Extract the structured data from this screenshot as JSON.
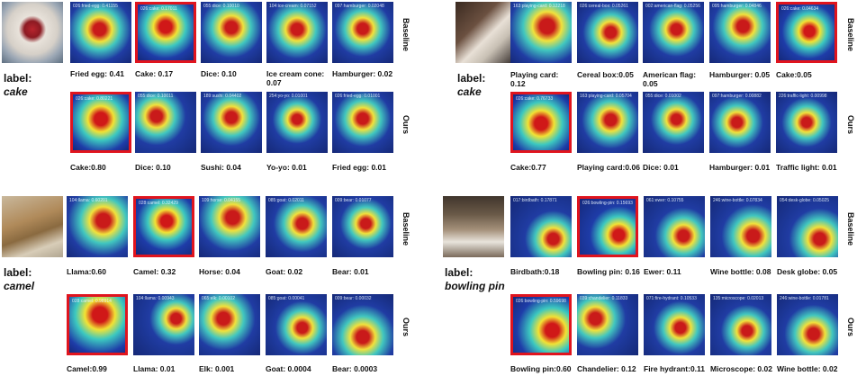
{
  "row_labels": {
    "baseline": "Baseline",
    "ours": "Ours"
  },
  "colors": {
    "selected_border": "#e0141e",
    "heat_hot": "#d01818",
    "heat_warm": "#f2e234",
    "heat_mid": "#3cc8c0",
    "heat_cold": "#1e3ca8"
  },
  "panels": [
    {
      "label_word": "label:",
      "label_class": "cake",
      "baseline": [
        {
          "caption": "Fried egg: 0.41",
          "hm": "026:fried-egg: 0.41155"
        },
        {
          "caption": "Cake: 0.17",
          "hm": "026:cake: 0.17011",
          "selected": true
        },
        {
          "caption": "Dice: 0.10",
          "hm": "055:dice: 0.10010"
        },
        {
          "caption": "Ice cream cone: 0.07",
          "hm": "104:ice-cream: 0.07152"
        },
        {
          "caption": "Hamburger: 0.02",
          "hm": "097:hamburger: 0.02048"
        }
      ],
      "ours": [
        {
          "caption": "Cake:0.80",
          "hm": "026:cake: 0.80221",
          "selected": true
        },
        {
          "caption": "Dice: 0.10",
          "hm": "055:dice: 0.10011"
        },
        {
          "caption": "Sushi: 0.04",
          "hm": "189:sushi: 0.04402"
        },
        {
          "caption": "Yo-yo: 0.01",
          "hm": "254:yo-yo: 0.01001"
        },
        {
          "caption": "Fried egg: 0.01",
          "hm": "026:fried-egg: 0.01001"
        }
      ]
    },
    {
      "label_word": "label:",
      "label_class": "cake",
      "baseline": [
        {
          "caption": "Playing card: 0.12",
          "hm": "163:playing-card: 0.12218"
        },
        {
          "caption": "Cereal box:0.05",
          "hm": "026:cereal-box: 0.05261"
        },
        {
          "caption": "American flag: 0.05",
          "hm": "002:american-flag: 0.05256"
        },
        {
          "caption": "Hamburger: 0.05",
          "hm": "095:hamburger: 0.04846"
        },
        {
          "caption": "Cake:0.05",
          "hm": "026:cake: 0.04634",
          "selected": true
        }
      ],
      "ours": [
        {
          "caption": "Cake:0.77",
          "hm": "026:cake: 0.76733",
          "selected": true
        },
        {
          "caption": "Playing card:0.06",
          "hm": "163:playing-card: 0.05704"
        },
        {
          "caption": "Dice: 0.01",
          "hm": "055:dice: 0.01002"
        },
        {
          "caption": "Hamburger: 0.01",
          "hm": "097:hamburger: 0.00882"
        },
        {
          "caption": "Traffic light: 0.01",
          "hm": "226:traffic-light: 0.00998"
        }
      ]
    },
    {
      "label_word": "label:",
      "label_class": "camel",
      "baseline": [
        {
          "caption": "Llama:0.60",
          "hm": "104:llama: 0.60201"
        },
        {
          "caption": "Camel: 0.32",
          "hm": "028:camel: 0.32429",
          "selected": true
        },
        {
          "caption": "Horse: 0.04",
          "hm": "109:horse: 0.04155"
        },
        {
          "caption": "Goat: 0.02",
          "hm": "085:goat: 0.02011"
        },
        {
          "caption": "Bear: 0.01",
          "hm": "009:bear: 0.01077"
        }
      ],
      "ours": [
        {
          "caption": "Camel:0.99",
          "hm": "028:camel: 0.98914",
          "selected": true
        },
        {
          "caption": "Llama: 0.01",
          "hm": "104:llama: 0.00943"
        },
        {
          "caption": "Elk: 0.001",
          "hm": "065:elk: 0.00102"
        },
        {
          "caption": "Goat: 0.0004",
          "hm": "085:goat: 0.00041"
        },
        {
          "caption": "Bear: 0.0003",
          "hm": "009:bear: 0.00032"
        }
      ]
    },
    {
      "label_word": "label:",
      "label_class": "bowling pin",
      "baseline": [
        {
          "caption": "Birdbath:0.18",
          "hm": "017:birdbath: 0.17871"
        },
        {
          "caption": "Bowling pin: 0.16",
          "hm": "026:bowling-pin: 0.15693",
          "selected": true
        },
        {
          "caption": "Ewer: 0.11",
          "hm": "061:ewer: 0.10755"
        },
        {
          "caption": "Wine bottle: 0.08",
          "hm": "246:wine-bottle: 0.07834"
        },
        {
          "caption": "Desk globe: 0.05",
          "hm": "054:desk-globe: 0.05025"
        }
      ],
      "ours": [
        {
          "caption": "Bowling pin:0.60",
          "hm": "026:bowling-pin: 0.59698",
          "selected": true
        },
        {
          "caption": "Chandelier: 0.12",
          "hm": "039:chandelier: 0.11833"
        },
        {
          "caption": "Fire hydrant:0.11",
          "hm": "071:fire-hydrant: 0.10533"
        },
        {
          "caption": "Microscope: 0.02",
          "hm": "135:microscope: 0.02013"
        },
        {
          "caption": "Wine bottle: 0.02",
          "hm": "246:wine-bottle: 0.01781"
        }
      ]
    }
  ]
}
